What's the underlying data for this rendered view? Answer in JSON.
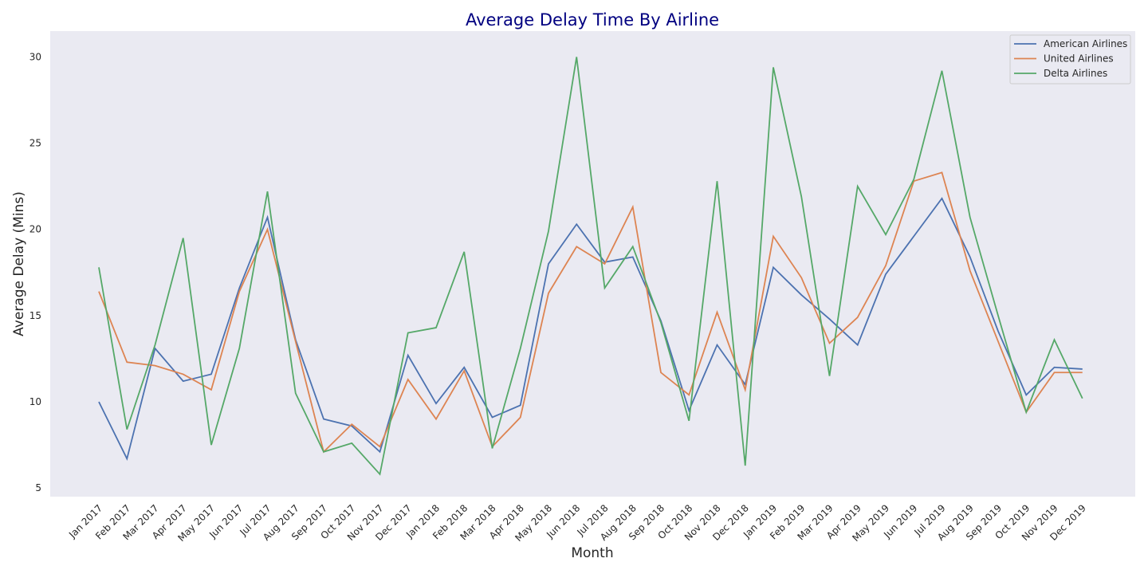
{
  "chart_data": {
    "type": "line",
    "title": "Average Delay Time By Airline",
    "xlabel": "Month",
    "ylabel": "Average Delay (Mins)",
    "ylim": [
      4.5,
      31.5
    ],
    "yticks": [
      5,
      10,
      15,
      20,
      25,
      30
    ],
    "grid": false,
    "legend_position": "top-right",
    "categories": [
      "Jan 2017",
      "Feb 2017",
      "Mar 2017",
      "Apr 2017",
      "May 2017",
      "Jun 2017",
      "Jul 2017",
      "Aug 2017",
      "Sep 2017",
      "Oct 2017",
      "Nov 2017",
      "Dec 2017",
      "Jan 2018",
      "Feb 2018",
      "Mar 2018",
      "Apr 2018",
      "May 2018",
      "Jun 2018",
      "Jul 2018",
      "Aug 2018",
      "Sep 2018",
      "Oct 2018",
      "Nov 2018",
      "Dec 2018",
      "Jan 2019",
      "Feb 2019",
      "Mar 2019",
      "Apr 2019",
      "May 2019",
      "Jun 2019",
      "Jul 2019",
      "Aug 2019",
      "Sep 2019",
      "Oct 2019",
      "Nov 2019",
      "Dec 2019"
    ],
    "series": [
      {
        "name": "American Airlines",
        "color": "#4c72b0",
        "values": [
          10.0,
          6.7,
          13.1,
          11.2,
          11.6,
          16.6,
          20.7,
          13.6,
          9.0,
          8.6,
          7.1,
          12.7,
          9.9,
          12.0,
          9.1,
          9.8,
          18.0,
          20.3,
          18.1,
          18.4,
          14.7,
          9.5,
          13.3,
          11.0,
          17.8,
          16.2,
          14.8,
          13.3,
          17.4,
          19.6,
          21.8,
          18.4,
          14.1,
          10.4,
          12.0,
          11.9
        ]
      },
      {
        "name": "United Airlines",
        "color": "#dd8452",
        "values": [
          16.4,
          12.3,
          12.1,
          11.6,
          10.7,
          16.4,
          20.0,
          13.5,
          7.1,
          8.7,
          7.4,
          11.3,
          9.0,
          11.8,
          7.4,
          9.1,
          16.3,
          19.0,
          18.0,
          21.3,
          11.7,
          10.4,
          15.2,
          10.7,
          19.6,
          17.2,
          13.4,
          14.9,
          17.9,
          22.8,
          23.3,
          17.6,
          13.5,
          9.4,
          11.7,
          11.7
        ]
      },
      {
        "name": "Delta Airlines",
        "color": "#55a868",
        "values": [
          17.8,
          8.4,
          13.3,
          19.5,
          7.5,
          13.1,
          22.2,
          10.5,
          7.1,
          7.6,
          5.8,
          14.0,
          14.3,
          18.7,
          7.3,
          13.1,
          19.9,
          30.0,
          16.6,
          19.0,
          14.6,
          8.9,
          22.8,
          6.3,
          29.4,
          21.9,
          11.5,
          22.5,
          19.7,
          22.9,
          29.2,
          20.7,
          15.0,
          9.4,
          13.6,
          10.2
        ]
      }
    ]
  }
}
